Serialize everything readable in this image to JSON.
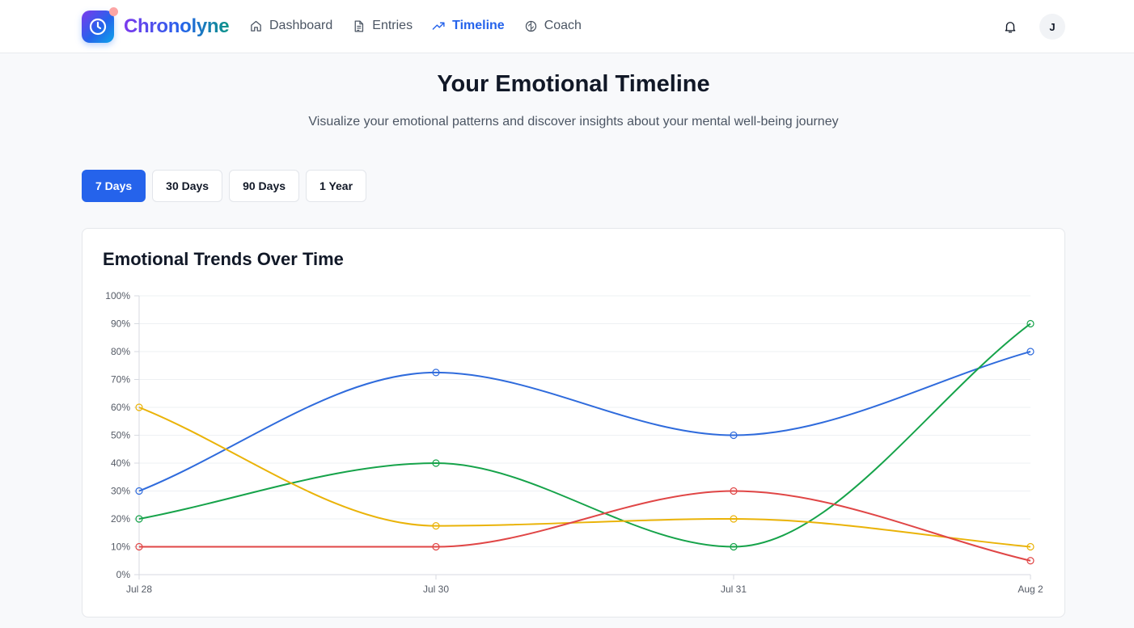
{
  "brand": {
    "name": "Chronolyne"
  },
  "nav": [
    {
      "label": "Dashboard",
      "icon": "home-icon",
      "active": false
    },
    {
      "label": "Entries",
      "icon": "document-icon",
      "active": false
    },
    {
      "label": "Timeline",
      "icon": "trending-up-icon",
      "active": true
    },
    {
      "label": "Coach",
      "icon": "brain-icon",
      "active": false
    }
  ],
  "header": {
    "notifications_icon": "bell-icon",
    "avatar_initial": "J"
  },
  "page": {
    "title": "Your Emotional Timeline",
    "subtitle": "Visualize your emotional patterns and discover insights about your mental well-being journey"
  },
  "ranges": [
    {
      "label": "7 Days",
      "active": true
    },
    {
      "label": "30 Days",
      "active": false
    },
    {
      "label": "90 Days",
      "active": false
    },
    {
      "label": "1 Year",
      "active": false
    }
  ],
  "card": {
    "title": "Emotional Trends Over Time"
  },
  "colors": {
    "accent": "#2563eb",
    "blue": "#2f6bdc",
    "green": "#16a34a",
    "yellow": "#eab308",
    "red": "#e04646"
  },
  "chart_data": {
    "type": "line",
    "title": "Emotional Trends Over Time",
    "categories": [
      "Jul 28",
      "Jul 30",
      "Jul 31",
      "Aug 2"
    ],
    "ylim": [
      0,
      100
    ],
    "yticks": [
      "0%",
      "10%",
      "20%",
      "30%",
      "40%",
      "50%",
      "60%",
      "70%",
      "80%",
      "90%",
      "100%"
    ],
    "grid": true,
    "series": [
      {
        "color": "#2f6bdc",
        "values": [
          30,
          72.5,
          50,
          80
        ]
      },
      {
        "color": "#16a34a",
        "values": [
          20,
          40,
          10,
          90
        ]
      },
      {
        "color": "#eab308",
        "values": [
          60,
          17.5,
          20,
          10
        ]
      },
      {
        "color": "#e04646",
        "values": [
          10,
          10,
          30,
          5
        ]
      }
    ]
  }
}
